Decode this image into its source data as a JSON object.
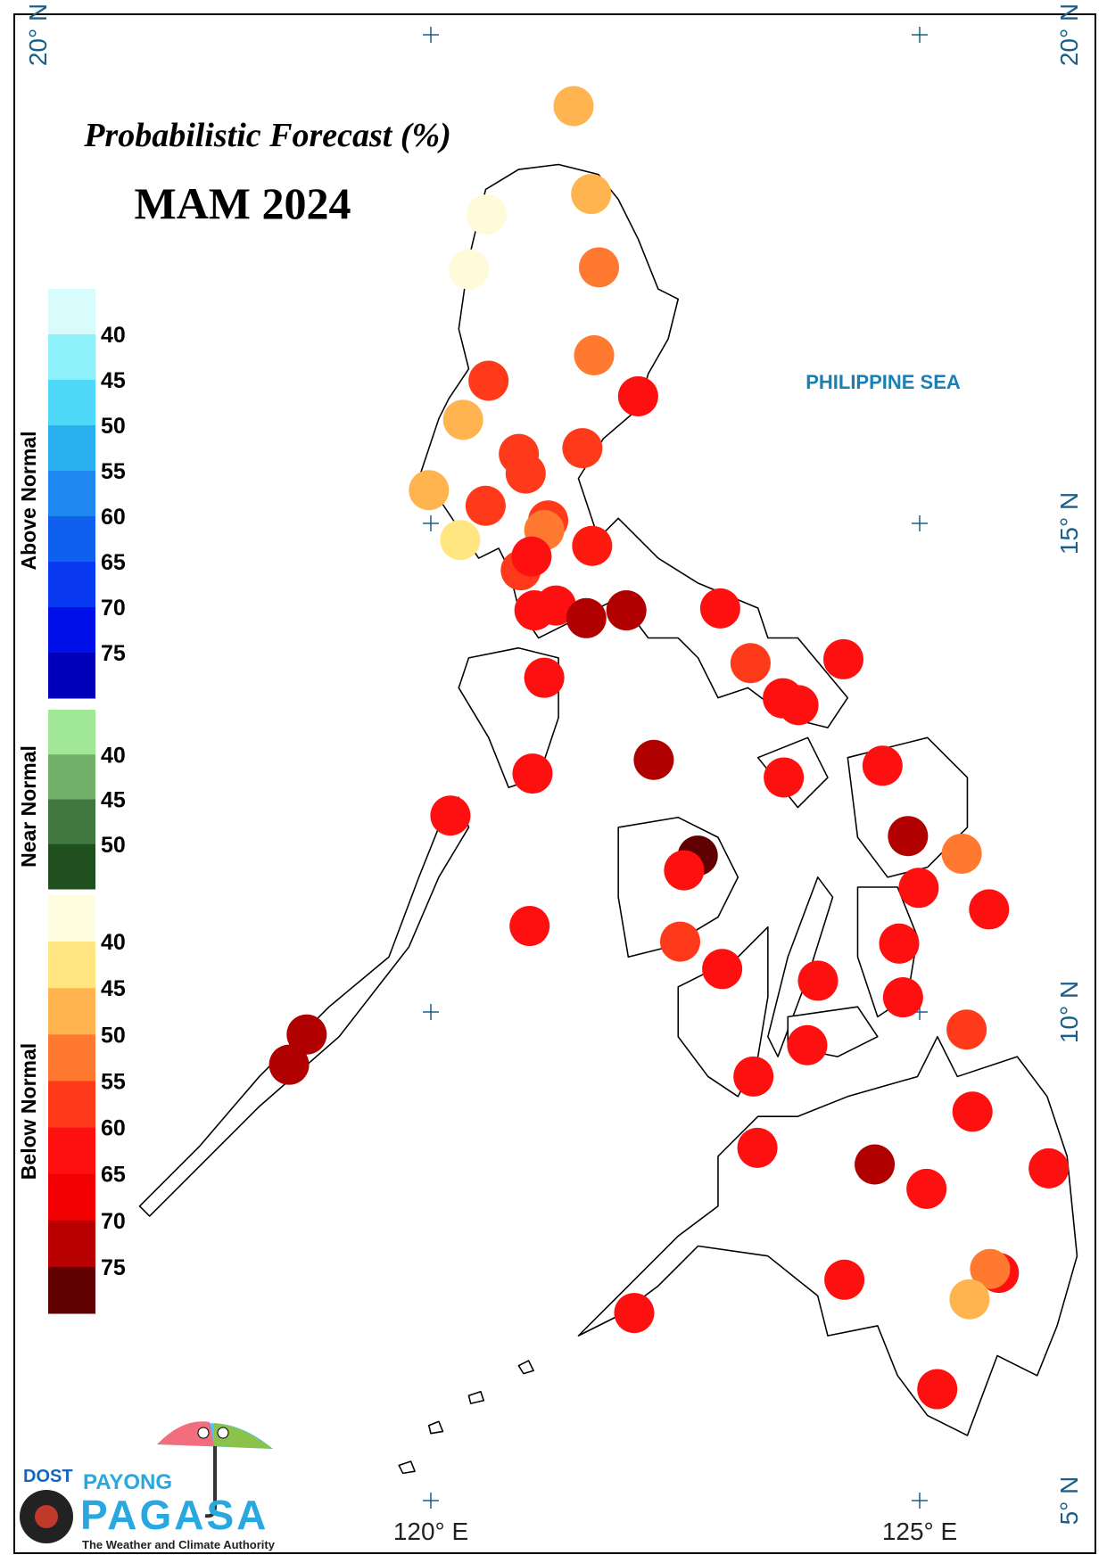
{
  "map": {
    "title": "Probabilistic Forecast (%)",
    "subtitle": "MAM 2024",
    "sea_label": "PHILIPPINE SEA",
    "lat_ticks": [
      {
        "value": 20,
        "label": "20° N"
      },
      {
        "value": 15,
        "label": "15° N"
      },
      {
        "value": 10,
        "label": "10° N"
      },
      {
        "value": 5,
        "label": "5° N"
      }
    ],
    "lon_ticks": [
      {
        "value": 120,
        "label": "120° E"
      },
      {
        "value": 125,
        "label": "125° E"
      }
    ],
    "legend": [
      {
        "title": "Above Normal",
        "colors": [
          "#d8fcfc",
          "#8ef0f8",
          "#50d8f8",
          "#28b0f0",
          "#1e88f0",
          "#1060f0",
          "#0838f0",
          "#0010e8",
          "#0000b8"
        ],
        "ticks": [
          40,
          45,
          50,
          55,
          60,
          65,
          70,
          75
        ]
      },
      {
        "title": "Near Normal",
        "colors": [
          "#a0e898",
          "#70b068",
          "#407840",
          "#205020"
        ],
        "ticks": [
          40,
          45,
          50
        ]
      },
      {
        "title": "Below Normal",
        "colors": [
          "#fffde0",
          "#ffe680",
          "#ffb450",
          "#ff7a30",
          "#ff3a1a",
          "#ff1010",
          "#f00000",
          "#b80000",
          "#600000"
        ],
        "ticks": [
          40,
          45,
          50,
          55,
          60,
          65,
          70,
          75
        ]
      }
    ],
    "stations": [
      {
        "lon": 121.46,
        "lat": 19.27,
        "color": "#ffb450"
      },
      {
        "lon": 121.64,
        "lat": 18.37,
        "color": "#ffb450"
      },
      {
        "lon": 120.57,
        "lat": 18.16,
        "color": "#fffbd8"
      },
      {
        "lon": 120.39,
        "lat": 17.6,
        "color": "#fffbd8"
      },
      {
        "lon": 121.72,
        "lat": 17.62,
        "color": "#ff7a30"
      },
      {
        "lon": 121.67,
        "lat": 16.72,
        "color": "#ff7a30"
      },
      {
        "lon": 120.59,
        "lat": 16.46,
        "color": "#ff3a1a"
      },
      {
        "lon": 122.12,
        "lat": 16.3,
        "color": "#ff1010"
      },
      {
        "lon": 120.33,
        "lat": 16.06,
        "color": "#ffb450"
      },
      {
        "lon": 121.55,
        "lat": 15.77,
        "color": "#ff3a1a"
      },
      {
        "lon": 120.9,
        "lat": 15.71,
        "color": "#ff3a1a"
      },
      {
        "lon": 120.97,
        "lat": 15.51,
        "color": "#ff3a1a"
      },
      {
        "lon": 119.98,
        "lat": 15.34,
        "color": "#ffb450"
      },
      {
        "lon": 120.56,
        "lat": 15.18,
        "color": "#ff3a1a"
      },
      {
        "lon": 121.2,
        "lat": 15.03,
        "color": "#ff3a1a"
      },
      {
        "lon": 121.16,
        "lat": 14.93,
        "color": "#ff7a30"
      },
      {
        "lon": 120.3,
        "lat": 14.83,
        "color": "#ffe680"
      },
      {
        "lon": 121.65,
        "lat": 14.77,
        "color": "#ff1a10"
      },
      {
        "lon": 120.92,
        "lat": 14.52,
        "color": "#ff3a1a"
      },
      {
        "lon": 121.03,
        "lat": 14.66,
        "color": "#ff1010"
      },
      {
        "lon": 121.06,
        "lat": 14.11,
        "color": "#ff1010"
      },
      {
        "lon": 121.28,
        "lat": 14.16,
        "color": "#ff1010"
      },
      {
        "lon": 121.59,
        "lat": 14.03,
        "color": "#b00000"
      },
      {
        "lon": 122.0,
        "lat": 14.11,
        "color": "#b00000"
      },
      {
        "lon": 122.96,
        "lat": 14.13,
        "color": "#ff1010"
      },
      {
        "lon": 123.27,
        "lat": 13.57,
        "color": "#ff3a1a"
      },
      {
        "lon": 124.22,
        "lat": 13.61,
        "color": "#ff1010"
      },
      {
        "lon": 121.16,
        "lat": 13.42,
        "color": "#ff1010"
      },
      {
        "lon": 123.6,
        "lat": 13.21,
        "color": "#ff1010"
      },
      {
        "lon": 123.76,
        "lat": 13.14,
        "color": "#ff1010"
      },
      {
        "lon": 122.28,
        "lat": 12.58,
        "color": "#b00000"
      },
      {
        "lon": 121.04,
        "lat": 12.44,
        "color": "#ff1010"
      },
      {
        "lon": 123.61,
        "lat": 12.4,
        "color": "#ff1010"
      },
      {
        "lon": 124.62,
        "lat": 12.52,
        "color": "#ff1010"
      },
      {
        "lon": 120.2,
        "lat": 12.01,
        "color": "#ff1010"
      },
      {
        "lon": 122.73,
        "lat": 11.6,
        "color": "#600000"
      },
      {
        "lon": 122.59,
        "lat": 11.45,
        "color": "#ff1010"
      },
      {
        "lon": 124.88,
        "lat": 11.8,
        "color": "#b00000"
      },
      {
        "lon": 125.43,
        "lat": 11.62,
        "color": "#ff7a30"
      },
      {
        "lon": 124.99,
        "lat": 11.27,
        "color": "#ff1010"
      },
      {
        "lon": 125.71,
        "lat": 11.05,
        "color": "#ff1010"
      },
      {
        "lon": 121.01,
        "lat": 10.88,
        "color": "#ff1010"
      },
      {
        "lon": 122.55,
        "lat": 10.72,
        "color": "#ff3a1a"
      },
      {
        "lon": 124.79,
        "lat": 10.7,
        "color": "#ff1010"
      },
      {
        "lon": 122.98,
        "lat": 10.44,
        "color": "#ff1010"
      },
      {
        "lon": 123.96,
        "lat": 10.32,
        "color": "#ff1010"
      },
      {
        "lon": 124.83,
        "lat": 10.15,
        "color": "#ff1010"
      },
      {
        "lon": 125.48,
        "lat": 9.82,
        "color": "#ff3a1a"
      },
      {
        "lon": 118.73,
        "lat": 9.77,
        "color": "#b00000"
      },
      {
        "lon": 118.55,
        "lat": 9.46,
        "color": "#b00000"
      },
      {
        "lon": 123.85,
        "lat": 9.66,
        "color": "#ff1010"
      },
      {
        "lon": 123.3,
        "lat": 9.34,
        "color": "#ff1010"
      },
      {
        "lon": 125.54,
        "lat": 8.98,
        "color": "#ff1010"
      },
      {
        "lon": 123.34,
        "lat": 8.61,
        "color": "#ff1010"
      },
      {
        "lon": 124.54,
        "lat": 8.44,
        "color": "#b00000"
      },
      {
        "lon": 126.32,
        "lat": 8.4,
        "color": "#ff1010"
      },
      {
        "lon": 125.07,
        "lat": 8.19,
        "color": "#ff1010"
      },
      {
        "lon": 124.23,
        "lat": 7.26,
        "color": "#ff1010"
      },
      {
        "lon": 125.81,
        "lat": 7.33,
        "color": "#ff1010"
      },
      {
        "lon": 125.72,
        "lat": 7.37,
        "color": "#ff7a30"
      },
      {
        "lon": 125.51,
        "lat": 7.06,
        "color": "#ffb450"
      },
      {
        "lon": 122.08,
        "lat": 6.92,
        "color": "#ff1010"
      },
      {
        "lon": 125.18,
        "lat": 6.14,
        "color": "#ff1010"
      }
    ],
    "logo": {
      "agency": "DOST",
      "top": "PAYONG",
      "name": "PAGASA",
      "tagline": "The Weather and Climate Authority"
    }
  }
}
